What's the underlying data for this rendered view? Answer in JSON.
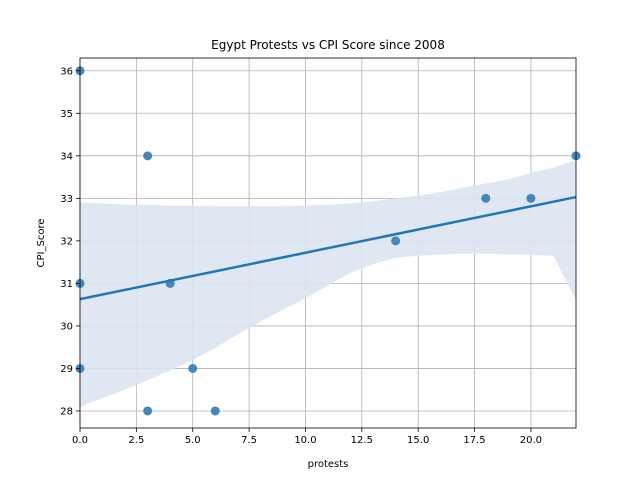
{
  "chart_data": {
    "type": "scatter",
    "title": "Egypt Protests vs CPI Score since 2008",
    "xlabel": "protests",
    "ylabel": "CPI_Score",
    "xlim": [
      0,
      22
    ],
    "ylim": [
      27.6,
      36.3
    ],
    "x_ticks": [
      0.0,
      2.5,
      5.0,
      7.5,
      10.0,
      12.5,
      15.0,
      17.5,
      20.0
    ],
    "x_tick_labels": [
      "0.0",
      "2.5",
      "5.0",
      "7.5",
      "10.0",
      "12.5",
      "15.0",
      "17.5",
      "20.0"
    ],
    "y_ticks": [
      28,
      29,
      30,
      31,
      32,
      33,
      34,
      35,
      36
    ],
    "y_tick_labels": [
      "28",
      "29",
      "30",
      "31",
      "32",
      "33",
      "34",
      "35",
      "36"
    ],
    "grid": true,
    "points": [
      {
        "x": 0,
        "y": 36
      },
      {
        "x": 0,
        "y": 31
      },
      {
        "x": 0,
        "y": 29
      },
      {
        "x": 3,
        "y": 34
      },
      {
        "x": 3,
        "y": 28
      },
      {
        "x": 4,
        "y": 31
      },
      {
        "x": 5,
        "y": 29
      },
      {
        "x": 6,
        "y": 28
      },
      {
        "x": 14,
        "y": 32
      },
      {
        "x": 18,
        "y": 33
      },
      {
        "x": 20,
        "y": 33
      },
      {
        "x": 22,
        "y": 34
      }
    ],
    "regression_line": {
      "x": [
        0,
        22
      ],
      "y": [
        30.63,
        33.03
      ]
    },
    "confidence_band": {
      "x": [
        0,
        1,
        2,
        3,
        4,
        5,
        6,
        7,
        8,
        9,
        10,
        11,
        12,
        13,
        14,
        15,
        16,
        17,
        18,
        19,
        20,
        21,
        22
      ],
      "upper": [
        32.9,
        32.88,
        32.85,
        32.85,
        32.83,
        32.83,
        32.82,
        32.82,
        32.82,
        32.82,
        32.83,
        32.85,
        32.88,
        32.93,
        33.0,
        33.07,
        33.15,
        33.25,
        33.35,
        33.45,
        33.6,
        33.72,
        33.9
      ],
      "lower": [
        28.1,
        28.3,
        28.5,
        28.72,
        28.95,
        29.2,
        29.48,
        29.8,
        30.1,
        30.38,
        30.65,
        30.95,
        31.25,
        31.45,
        31.6,
        31.65,
        31.68,
        31.7,
        31.7,
        31.68,
        31.67,
        31.65,
        30.6
      ]
    },
    "colors": {
      "point": "#3d7fb5",
      "line": "#1f77b4",
      "band": "#dbe6f1"
    }
  }
}
